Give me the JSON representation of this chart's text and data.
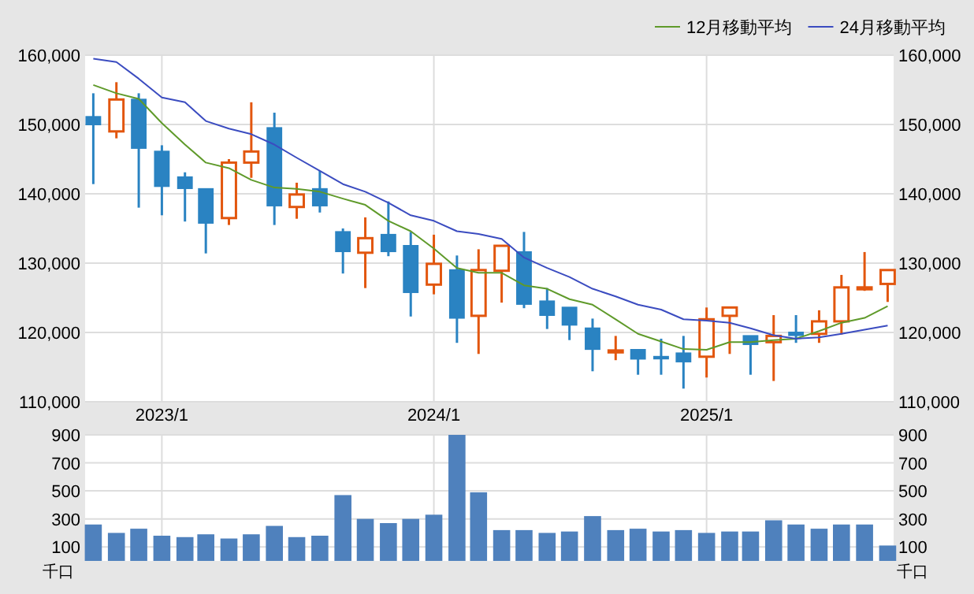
{
  "chart_data": [
    {
      "type": "candlestick",
      "x": [
        "2022-10",
        "2022-11",
        "2022-12",
        "2023-01",
        "2023-02",
        "2023-03",
        "2023-04",
        "2023-05",
        "2023-06",
        "2023-07",
        "2023-08",
        "2023-09",
        "2023-10",
        "2023-11",
        "2023-12",
        "2024-01",
        "2024-02",
        "2024-03",
        "2024-04",
        "2024-05",
        "2024-06",
        "2024-07",
        "2024-08",
        "2024-09",
        "2024-10",
        "2024-11",
        "2024-12",
        "2025-01",
        "2025-02",
        "2025-03",
        "2025-04",
        "2025-05",
        "2025-06",
        "2025-07",
        "2025-08",
        "2025-09"
      ],
      "ohlc": [
        [
          151100,
          154500,
          141400,
          150000
        ],
        [
          149000,
          156100,
          148000,
          153600
        ],
        [
          153600,
          154500,
          138000,
          146600
        ],
        [
          146100,
          147000,
          136900,
          141100
        ],
        [
          142400,
          143100,
          136000,
          140800
        ],
        [
          140700,
          140700,
          131400,
          135800
        ],
        [
          136500,
          145000,
          135500,
          144500
        ],
        [
          144500,
          153200,
          142300,
          146100
        ],
        [
          149500,
          151700,
          135500,
          138300
        ],
        [
          138100,
          141600,
          136400,
          139900
        ],
        [
          140700,
          143300,
          137300,
          138300
        ],
        [
          134500,
          135000,
          128500,
          131700
        ],
        [
          131500,
          136600,
          126400,
          133600
        ],
        [
          134100,
          138900,
          131000,
          131700
        ],
        [
          132500,
          134500,
          122300,
          125800
        ],
        [
          126900,
          134100,
          125500,
          129900
        ],
        [
          129000,
          131100,
          118500,
          122100
        ],
        [
          122400,
          132000,
          116900,
          129000
        ],
        [
          128900,
          132500,
          124300,
          132500
        ],
        [
          131600,
          134500,
          123500,
          124100
        ],
        [
          124500,
          126400,
          120500,
          122500
        ],
        [
          123600,
          123600,
          118900,
          121100
        ],
        [
          120600,
          122000,
          114400,
          117600
        ],
        [
          117300,
          119500,
          116000,
          117400
        ],
        [
          117500,
          117500,
          113900,
          116200
        ],
        [
          116500,
          119100,
          113900,
          116400
        ],
        [
          117000,
          119500,
          111900,
          115800
        ],
        [
          116500,
          123600,
          113500,
          121900
        ],
        [
          122400,
          123600,
          116900,
          123600
        ],
        [
          119500,
          119500,
          113900,
          118300
        ],
        [
          118600,
          122500,
          113000,
          119500
        ],
        [
          120000,
          122500,
          118500,
          119600
        ],
        [
          119800,
          123200,
          118500,
          121600
        ],
        [
          121600,
          128300,
          119700,
          126500
        ],
        [
          126400,
          131600,
          126000,
          126500
        ],
        [
          127000,
          129000,
          124400,
          129000
        ]
      ],
      "series": [
        {
          "name": "12月移動平均",
          "type": "line",
          "color": "#5f9a2a",
          "values": [
            155700,
            154500,
            153700,
            150200,
            147100,
            144500,
            143700,
            142000,
            140900,
            140700,
            140300,
            139300,
            138400,
            136100,
            134600,
            132100,
            129300,
            128600,
            128600,
            126800,
            126300,
            124800,
            124000,
            121900,
            119800,
            118700,
            117600,
            117500,
            118600,
            118600,
            118900,
            119100,
            120200,
            121400,
            122100,
            123800
          ]
        },
        {
          "name": "24月移動平均",
          "type": "line",
          "color": "#3b4cc0",
          "values": [
            159500,
            159000,
            156600,
            153900,
            153200,
            150500,
            149400,
            148600,
            147100,
            145200,
            143300,
            141400,
            140300,
            138700,
            136900,
            136100,
            134600,
            134200,
            133500,
            130800,
            129300,
            128000,
            126300,
            125200,
            124000,
            123300,
            121900,
            121700,
            121400,
            120600,
            119600,
            119100,
            119300,
            119800,
            120400,
            121000
          ]
        }
      ],
      "xlim": [
        "2022-09-20",
        "2025-09-09"
      ],
      "xticks": [
        {
          "value": "2023-01",
          "label": "2023/1"
        },
        {
          "value": "2024-01",
          "label": "2024/1"
        },
        {
          "value": "2025-01",
          "label": "2025/1"
        }
      ],
      "ylim": [
        110000,
        160000
      ],
      "yticks": [
        {
          "value": 110000,
          "label": "110,000"
        },
        {
          "value": 120000,
          "label": "120,000"
        },
        {
          "value": 130000,
          "label": "130,000"
        },
        {
          "value": 140000,
          "label": "140,000"
        },
        {
          "value": 150000,
          "label": "150,000"
        },
        {
          "value": 160000,
          "label": "160,000"
        }
      ],
      "y2lim": [
        110000,
        160000
      ],
      "y2ticks": [
        {
          "value": 110000,
          "label": "110,000"
        },
        {
          "value": 120000,
          "label": "120,000"
        },
        {
          "value": 130000,
          "label": "130,000"
        },
        {
          "value": 140000,
          "label": "140,000"
        },
        {
          "value": 150000,
          "label": "150,000"
        },
        {
          "value": 160000,
          "label": "160,000"
        }
      ],
      "grid": true,
      "legend": "top right"
    },
    {
      "type": "bar",
      "x": [
        "2022-10",
        "2022-11",
        "2022-12",
        "2023-01",
        "2023-02",
        "2023-03",
        "2023-04",
        "2023-05",
        "2023-06",
        "2023-07",
        "2023-08",
        "2023-09",
        "2023-10",
        "2023-11",
        "2023-12",
        "2024-01",
        "2024-02",
        "2024-03",
        "2024-04",
        "2024-05",
        "2024-06",
        "2024-07",
        "2024-08",
        "2024-09",
        "2024-10",
        "2024-11",
        "2024-12",
        "2025-01",
        "2025-02",
        "2025-03",
        "2025-04",
        "2025-05",
        "2025-06",
        "2025-07",
        "2025-08",
        "2025-09"
      ],
      "values": [
        260,
        200,
        230,
        180,
        170,
        190,
        160,
        190,
        250,
        170,
        180,
        470,
        300,
        270,
        300,
        330,
        900,
        490,
        220,
        220,
        200,
        210,
        320,
        220,
        230,
        210,
        220,
        200,
        210,
        210,
        290,
        260,
        230,
        260,
        260,
        110
      ],
      "color": "#4f81bd",
      "xlim": [
        "2022-09-20",
        "2025-09-09"
      ],
      "xticks": [
        {
          "value": "2023-01",
          "label": null
        },
        {
          "value": "2024-01",
          "label": null
        },
        {
          "value": "2025-01",
          "label": null
        }
      ],
      "ylim": [
        0,
        900
      ],
      "yticks": [
        100,
        300,
        500,
        700,
        900
      ],
      "y2lim": [
        0,
        900
      ],
      "y2ticks": [
        100,
        300,
        500,
        700,
        900
      ],
      "ylabel": "千口",
      "y2label": "千口",
      "grid": true,
      "tick_labels": "y"
    }
  ]
}
